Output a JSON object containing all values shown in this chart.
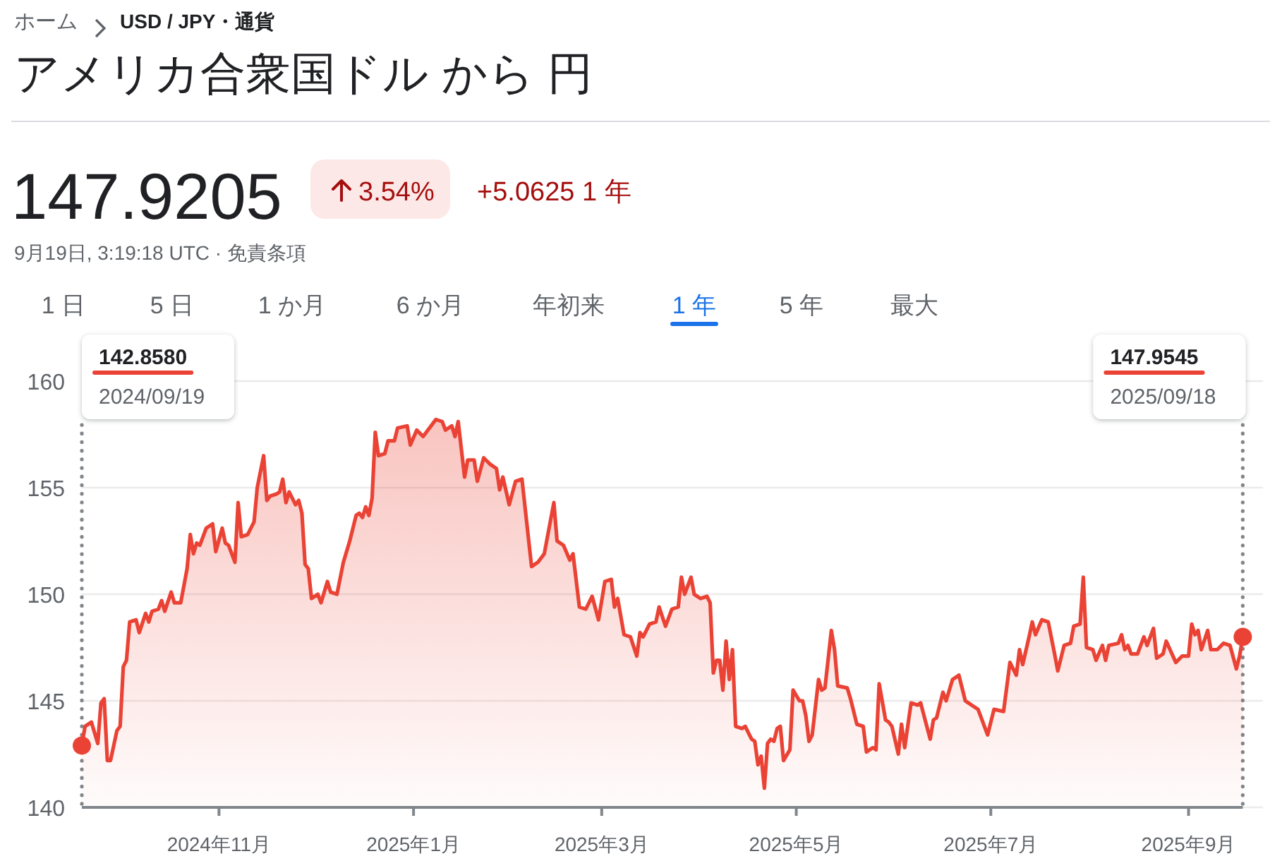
{
  "chart_data": {
    "type": "area",
    "title": "アメリカ合衆国ドル から 円",
    "annotations": [
      "ホーム",
      "USD / JPY・通貨",
      "147.9205",
      "3.54%",
      "+5.0625 1 年",
      "9月19日, 3:19:18 UTC · 免責条項",
      "1 日",
      "5 日",
      "1 か月",
      "6 か月",
      "年初来",
      "1 年",
      "5 年",
      "最大",
      "142.8580",
      "2024/09/19",
      "147.9545",
      "2025/09/18"
    ],
    "xlim": [
      "2024-09-19",
      "2025-09-18"
    ],
    "xticks": [
      {
        "value": "2024-11-01",
        "label": "2024年11月"
      },
      {
        "value": "2025-01-01",
        "label": "2025年1月"
      },
      {
        "value": "2025-03-01",
        "label": "2025年3月"
      },
      {
        "value": "2025-05-01",
        "label": "2025年5月"
      },
      {
        "value": "2025-07-01",
        "label": "2025年7月"
      },
      {
        "value": "2025-09-01",
        "label": "2025年9月"
      }
    ],
    "ylim": [
      140,
      160
    ],
    "yticks": [
      140,
      145,
      150,
      155,
      160
    ],
    "grid": "y",
    "series": [
      {
        "color": "#ea4335",
        "x": [
          "2024-09-19",
          "2024-09-20",
          "2024-09-22",
          "2024-09-24",
          "2024-09-25",
          "2024-09-26",
          "2024-09-27",
          "2024-09-28",
          "2024-09-30",
          "2024-10-01",
          "2024-10-02",
          "2024-10-03",
          "2024-10-04",
          "2024-10-06",
          "2024-10-07",
          "2024-10-09",
          "2024-10-10",
          "2024-10-11",
          "2024-10-13",
          "2024-10-14",
          "2024-10-15",
          "2024-10-17",
          "2024-10-18",
          "2024-10-20",
          "2024-10-22",
          "2024-10-23",
          "2024-10-24",
          "2024-10-25",
          "2024-10-26",
          "2024-10-28",
          "2024-10-30",
          "2024-10-31",
          "2024-11-02",
          "2024-11-03",
          "2024-11-04",
          "2024-11-06",
          "2024-11-07",
          "2024-11-08",
          "2024-11-10",
          "2024-11-12",
          "2024-11-13",
          "2024-11-15",
          "2024-11-16",
          "2024-11-17",
          "2024-11-19",
          "2024-11-20",
          "2024-11-21",
          "2024-11-22",
          "2024-11-23",
          "2024-11-25",
          "2024-11-26",
          "2024-11-27",
          "2024-11-28",
          "2024-11-29",
          "2024-11-30",
          "2024-12-02",
          "2024-12-03",
          "2024-12-05",
          "2024-12-06",
          "2024-12-08",
          "2024-12-10",
          "2024-12-12",
          "2024-12-14",
          "2024-12-15",
          "2024-12-16",
          "2024-12-17",
          "2024-12-18",
          "2024-12-19",
          "2024-12-20",
          "2024-12-21",
          "2024-12-23",
          "2024-12-24",
          "2024-12-26",
          "2024-12-27",
          "2024-12-30",
          "2024-12-31",
          "2025-01-02",
          "2025-01-04",
          "2025-01-08",
          "2025-01-10",
          "2025-01-11",
          "2025-01-13",
          "2025-01-14",
          "2025-01-15",
          "2025-01-17",
          "2025-01-18",
          "2025-01-20",
          "2025-01-21",
          "2025-01-23",
          "2025-01-25",
          "2025-01-27",
          "2025-01-28",
          "2025-01-29",
          "2025-01-31",
          "2025-02-02",
          "2025-02-04",
          "2025-02-07",
          "2025-02-09",
          "2025-02-11",
          "2025-02-14",
          "2025-02-15",
          "2025-02-17",
          "2025-02-19",
          "2025-02-20",
          "2025-02-22",
          "2025-02-24",
          "2025-02-26",
          "2025-02-28",
          "2025-03-02",
          "2025-03-04",
          "2025-03-05",
          "2025-03-06",
          "2025-03-08",
          "2025-03-10",
          "2025-03-12",
          "2025-03-13",
          "2025-03-14",
          "2025-03-16",
          "2025-03-18",
          "2025-03-19",
          "2025-03-21",
          "2025-03-23",
          "2025-03-25",
          "2025-03-26",
          "2025-03-27",
          "2025-03-29",
          "2025-03-30",
          "2025-04-01",
          "2025-04-03",
          "2025-04-04",
          "2025-04-05",
          "2025-04-06",
          "2025-04-07",
          "2025-04-08",
          "2025-04-09",
          "2025-04-10",
          "2025-04-11",
          "2025-04-12",
          "2025-04-14",
          "2025-04-15",
          "2025-04-17",
          "2025-04-18",
          "2025-04-19",
          "2025-04-20",
          "2025-04-21",
          "2025-04-22",
          "2025-04-23",
          "2025-04-24",
          "2025-04-25",
          "2025-04-26",
          "2025-04-27",
          "2025-04-29",
          "2025-04-30",
          "2025-05-02",
          "2025-05-03",
          "2025-05-04",
          "2025-05-05",
          "2025-05-06",
          "2025-05-08",
          "2025-05-09",
          "2025-05-10",
          "2025-05-12",
          "2025-05-13",
          "2025-05-14",
          "2025-05-17",
          "2025-05-18",
          "2025-05-20",
          "2025-05-22",
          "2025-05-23",
          "2025-05-25",
          "2025-05-26",
          "2025-05-27",
          "2025-05-29",
          "2025-05-30",
          "2025-05-31",
          "2025-06-02",
          "2025-06-03",
          "2025-06-04",
          "2025-06-06",
          "2025-06-08",
          "2025-06-09",
          "2025-06-12",
          "2025-06-13",
          "2025-06-14",
          "2025-06-16",
          "2025-06-17",
          "2025-06-19",
          "2025-06-21",
          "2025-06-23",
          "2025-06-25",
          "2025-06-27",
          "2025-06-30",
          "2025-07-02",
          "2025-07-05",
          "2025-07-07",
          "2025-07-09",
          "2025-07-10",
          "2025-07-11",
          "2025-07-13",
          "2025-07-14",
          "2025-07-15",
          "2025-07-17",
          "2025-07-19",
          "2025-07-21",
          "2025-07-22",
          "2025-07-24",
          "2025-07-26",
          "2025-07-27",
          "2025-07-29",
          "2025-07-30",
          "2025-07-31",
          "2025-08-02",
          "2025-08-03",
          "2025-08-05",
          "2025-08-06",
          "2025-08-07",
          "2025-08-10",
          "2025-08-11",
          "2025-08-12",
          "2025-08-13",
          "2025-08-14",
          "2025-08-16",
          "2025-08-18",
          "2025-08-19",
          "2025-08-21",
          "2025-08-22",
          "2025-08-24",
          "2025-08-25",
          "2025-08-28",
          "2025-08-30",
          "2025-09-01",
          "2025-09-02",
          "2025-09-03",
          "2025-09-04",
          "2025-09-05",
          "2025-09-07",
          "2025-09-08",
          "2025-09-10",
          "2025-09-12",
          "2025-09-14",
          "2025-09-16",
          "2025-09-17",
          "2025-09-18"
        ],
        "values": [
          142.9,
          143.8,
          144.0,
          143.0,
          144.9,
          145.1,
          142.2,
          142.2,
          143.6,
          143.8,
          146.6,
          146.9,
          148.7,
          148.8,
          148.2,
          149.1,
          148.7,
          149.2,
          149.3,
          149.7,
          149.2,
          150.1,
          149.6,
          149.6,
          151.2,
          152.8,
          151.9,
          152.4,
          152.3,
          153.1,
          153.3,
          152.0,
          153.1,
          152.4,
          152.3,
          151.5,
          154.3,
          152.7,
          152.8,
          153.4,
          155.0,
          156.5,
          154.4,
          154.6,
          154.7,
          154.8,
          155.4,
          154.3,
          154.8,
          154.2,
          154.4,
          153.8,
          151.4,
          151.2,
          149.8,
          150.0,
          149.6,
          150.6,
          150.1,
          150.0,
          151.5,
          152.5,
          153.7,
          153.8,
          153.6,
          154.1,
          153.7,
          154.5,
          157.6,
          156.5,
          156.6,
          157.2,
          157.2,
          157.8,
          157.9,
          157.0,
          157.7,
          157.4,
          158.2,
          158.1,
          157.7,
          157.9,
          157.4,
          158.1,
          155.5,
          156.3,
          156.3,
          155.3,
          156.4,
          156.1,
          155.9,
          154.9,
          155.5,
          154.2,
          155.3,
          155.4,
          151.3,
          151.5,
          151.9,
          154.3,
          152.5,
          152.3,
          151.6,
          151.9,
          149.4,
          149.3,
          149.9,
          148.8,
          150.6,
          150.7,
          149.4,
          149.8,
          148.1,
          148.0,
          147.1,
          148.2,
          148.0,
          148.6,
          148.7,
          149.4,
          148.5,
          149.3,
          149.4,
          150.8,
          150.0,
          150.8,
          150.0,
          149.8,
          149.9,
          149.6,
          146.3,
          146.9,
          146.9,
          145.5,
          147.8,
          146.0,
          147.4,
          143.8,
          143.7,
          143.8,
          143.2,
          143.1,
          142.0,
          142.4,
          140.9,
          143.0,
          143.2,
          143.1,
          143.7,
          143.8,
          142.2,
          142.7,
          145.5,
          145.0,
          145.0,
          144.3,
          143.1,
          143.4,
          146.0,
          145.5,
          145.6,
          148.3,
          147.4,
          145.7,
          145.6,
          145.1,
          143.9,
          143.8,
          142.6,
          142.8,
          142.7,
          145.8,
          144.1,
          144.0,
          143.8,
          142.5,
          143.9,
          142.8,
          144.9,
          144.8,
          144.9,
          143.2,
          144.1,
          144.2,
          145.4,
          145.0,
          146.0,
          146.2,
          145.0,
          144.8,
          144.6,
          143.4,
          144.6,
          144.5,
          146.8,
          146.2,
          147.4,
          146.7,
          148.0,
          148.7,
          148.1,
          148.8,
          148.7,
          147.2,
          146.4,
          147.6,
          147.7,
          148.5,
          148.6,
          150.8,
          147.5,
          147.4,
          146.9,
          147.6,
          146.9,
          147.6,
          147.7,
          148.1,
          147.4,
          147.6,
          147.2,
          147.2,
          148.0,
          147.6,
          148.4,
          147.0,
          147.2,
          147.8,
          146.8,
          147.1,
          147.1,
          148.6,
          148.1,
          148.3,
          147.4,
          148.3,
          147.4,
          147.4,
          147.7,
          147.6,
          146.5,
          147.1,
          148.0
        ]
      },
      {
        "type": "scatter",
        "color": "#ea4335",
        "marker": "circle",
        "x": [
          "2024-09-19",
          "2025-09-18"
        ],
        "values": [
          142.9,
          148.0
        ]
      }
    ],
    "ref_lines": [
      {
        "axis": "x",
        "value": "2024-09-19",
        "line_style": "dotted",
        "color": "#80868b"
      },
      {
        "axis": "x",
        "value": "2025-09-18",
        "line_style": "dotted",
        "color": "#80868b"
      }
    ]
  }
}
